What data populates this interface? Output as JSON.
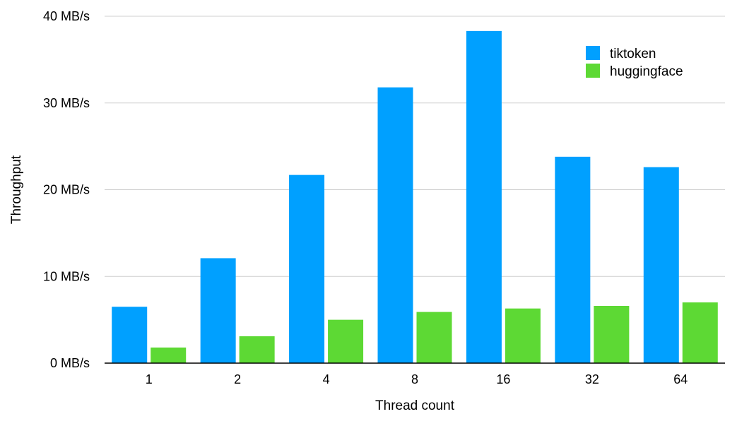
{
  "chart_data": {
    "type": "bar",
    "title": "",
    "xlabel": "Thread count",
    "ylabel": "Throughput",
    "categories": [
      "1",
      "2",
      "4",
      "8",
      "16",
      "32",
      "64"
    ],
    "series": [
      {
        "name": "tiktoken",
        "color": "#00a0ff",
        "values": [
          6.5,
          12.1,
          21.7,
          31.8,
          38.3,
          23.8,
          22.6
        ]
      },
      {
        "name": "huggingface",
        "color": "#5dd934",
        "values": [
          1.8,
          3.1,
          5.0,
          5.9,
          6.3,
          6.6,
          7.0
        ]
      }
    ],
    "ylim": [
      0,
      40
    ],
    "yticks": [
      0,
      10,
      20,
      30,
      40
    ],
    "ytick_labels": [
      "0 MB/s",
      "10 MB/s",
      "20 MB/s",
      "30 MB/s",
      "40 MB/s"
    ],
    "grid": true,
    "legend_position": "top-right"
  }
}
